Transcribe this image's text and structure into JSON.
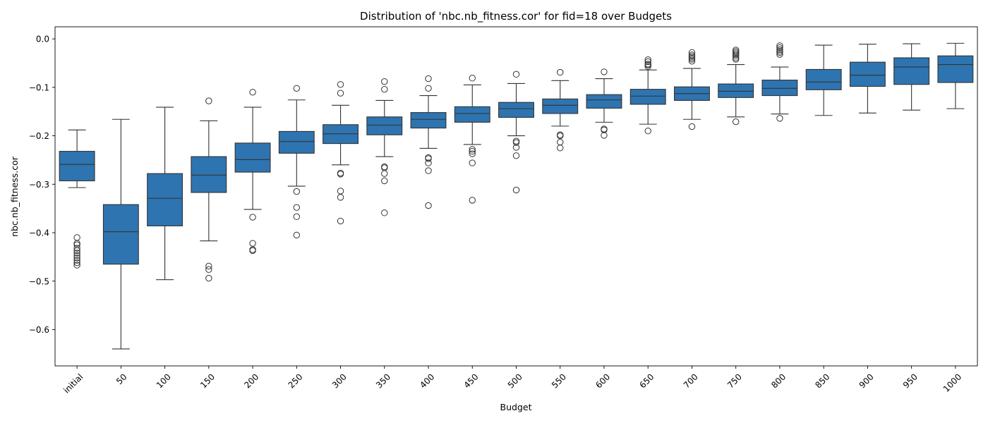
{
  "chart_data": {
    "type": "box",
    "title": "Distribution of 'nbc.nb_fitness.cor' for fid=18 over Budgets",
    "xlabel": "Budget",
    "ylabel": "nbc.nb_fitness.cor",
    "ylim": [
      -0.675,
      0.025
    ],
    "yticks": [
      0.0,
      -0.1,
      -0.2,
      -0.3,
      -0.4,
      -0.5,
      -0.6
    ],
    "ytick_labels": [
      "0.0",
      "−0.1",
      "−0.2",
      "−0.3",
      "−0.4",
      "−0.5",
      "−0.6"
    ],
    "grid": false,
    "legend": "none",
    "box_color": "#2e74b0",
    "line_color": "#333333",
    "categories": [
      "initial",
      "50",
      "100",
      "150",
      "200",
      "250",
      "300",
      "350",
      "400",
      "450",
      "500",
      "550",
      "600",
      "650",
      "700",
      "750",
      "800",
      "850",
      "900",
      "950",
      "1000"
    ],
    "boxes": [
      {
        "whisker_low": -0.307,
        "q1": -0.293,
        "median": -0.259,
        "q3": -0.232,
        "whisker_high": -0.188,
        "outliers": [
          -0.41,
          -0.422,
          -0.425,
          -0.432,
          -0.437,
          -0.442,
          -0.447,
          -0.452,
          -0.457,
          -0.462,
          -0.467
        ]
      },
      {
        "whisker_low": -0.64,
        "q1": -0.465,
        "median": -0.398,
        "q3": -0.342,
        "whisker_high": -0.166,
        "outliers": []
      },
      {
        "whisker_low": -0.497,
        "q1": -0.386,
        "median": -0.329,
        "q3": -0.278,
        "whisker_high": -0.141,
        "outliers": []
      },
      {
        "whisker_low": -0.417,
        "q1": -0.317,
        "median": -0.281,
        "q3": -0.243,
        "whisker_high": -0.169,
        "outliers": [
          -0.128,
          -0.469,
          -0.476,
          -0.494
        ]
      },
      {
        "whisker_low": -0.352,
        "q1": -0.275,
        "median": -0.249,
        "q3": -0.215,
        "whisker_high": -0.141,
        "outliers": [
          -0.11,
          -0.368,
          -0.422,
          -0.435,
          -0.437
        ]
      },
      {
        "whisker_low": -0.304,
        "q1": -0.236,
        "median": -0.212,
        "q3": -0.191,
        "whisker_high": -0.126,
        "outliers": [
          -0.102,
          -0.315,
          -0.348,
          -0.367,
          -0.405
        ]
      },
      {
        "whisker_low": -0.26,
        "q1": -0.216,
        "median": -0.196,
        "q3": -0.177,
        "whisker_high": -0.137,
        "outliers": [
          -0.094,
          -0.112,
          -0.277,
          -0.279,
          -0.314,
          -0.327,
          -0.376
        ]
      },
      {
        "whisker_low": -0.243,
        "q1": -0.198,
        "median": -0.178,
        "q3": -0.161,
        "whisker_high": -0.127,
        "outliers": [
          -0.088,
          -0.104,
          -0.264,
          -0.266,
          -0.278,
          -0.293,
          -0.359
        ]
      },
      {
        "whisker_low": -0.226,
        "q1": -0.184,
        "median": -0.166,
        "q3": -0.152,
        "whisker_high": -0.117,
        "outliers": [
          -0.082,
          -0.102,
          -0.245,
          -0.247,
          -0.256,
          -0.272,
          -0.344
        ]
      },
      {
        "whisker_low": -0.218,
        "q1": -0.172,
        "median": -0.154,
        "q3": -0.14,
        "whisker_high": -0.095,
        "outliers": [
          -0.081,
          -0.228,
          -0.232,
          -0.237,
          -0.256,
          -0.333
        ]
      },
      {
        "whisker_low": -0.2,
        "q1": -0.162,
        "median": -0.144,
        "q3": -0.131,
        "whisker_high": -0.092,
        "outliers": [
          -0.073,
          -0.211,
          -0.214,
          -0.224,
          -0.241,
          -0.312
        ]
      },
      {
        "whisker_low": -0.18,
        "q1": -0.154,
        "median": -0.137,
        "q3": -0.124,
        "whisker_high": -0.086,
        "outliers": [
          -0.069,
          -0.198,
          -0.2,
          -0.213,
          -0.225
        ]
      },
      {
        "whisker_low": -0.172,
        "q1": -0.143,
        "median": -0.126,
        "q3": -0.115,
        "whisker_high": -0.082,
        "outliers": [
          -0.068,
          -0.186,
          -0.188,
          -0.199
        ]
      },
      {
        "whisker_low": -0.176,
        "q1": -0.135,
        "median": -0.118,
        "q3": -0.104,
        "whisker_high": -0.064,
        "outliers": [
          -0.043,
          -0.047,
          -0.052,
          -0.054,
          -0.057,
          -0.19
        ]
      },
      {
        "whisker_low": -0.166,
        "q1": -0.127,
        "median": -0.113,
        "q3": -0.099,
        "whisker_high": -0.061,
        "outliers": [
          -0.028,
          -0.033,
          -0.036,
          -0.039,
          -0.042,
          -0.046,
          -0.181
        ]
      },
      {
        "whisker_low": -0.161,
        "q1": -0.121,
        "median": -0.108,
        "q3": -0.093,
        "whisker_high": -0.053,
        "outliers": [
          -0.023,
          -0.026,
          -0.029,
          -0.032,
          -0.035,
          -0.039,
          -0.042,
          -0.171
        ]
      },
      {
        "whisker_low": -0.155,
        "q1": -0.117,
        "median": -0.102,
        "q3": -0.085,
        "whisker_high": -0.058,
        "outliers": [
          -0.014,
          -0.018,
          -0.022,
          -0.025,
          -0.028,
          -0.032,
          -0.164
        ]
      },
      {
        "whisker_low": -0.158,
        "q1": -0.105,
        "median": -0.089,
        "q3": -0.063,
        "whisker_high": -0.013,
        "outliers": []
      },
      {
        "whisker_low": -0.153,
        "q1": -0.098,
        "median": -0.075,
        "q3": -0.048,
        "whisker_high": -0.011,
        "outliers": []
      },
      {
        "whisker_low": -0.147,
        "q1": -0.094,
        "median": -0.058,
        "q3": -0.039,
        "whisker_high": -0.01,
        "outliers": []
      },
      {
        "whisker_low": -0.144,
        "q1": -0.09,
        "median": -0.053,
        "q3": -0.035,
        "whisker_high": -0.009,
        "outliers": []
      }
    ]
  }
}
